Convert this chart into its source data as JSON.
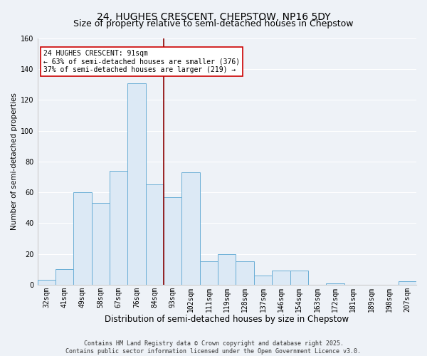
{
  "title": "24, HUGHES CRESCENT, CHEPSTOW, NP16 5DY",
  "subtitle": "Size of property relative to semi-detached houses in Chepstow",
  "xlabel": "Distribution of semi-detached houses by size in Chepstow",
  "ylabel": "Number of semi-detached properties",
  "categories": [
    "32sqm",
    "41sqm",
    "49sqm",
    "58sqm",
    "67sqm",
    "76sqm",
    "84sqm",
    "93sqm",
    "102sqm",
    "111sqm",
    "119sqm",
    "128sqm",
    "137sqm",
    "146sqm",
    "154sqm",
    "163sqm",
    "172sqm",
    "181sqm",
    "189sqm",
    "198sqm",
    "207sqm"
  ],
  "values": [
    3,
    10,
    60,
    53,
    74,
    131,
    65,
    57,
    73,
    15,
    20,
    15,
    6,
    9,
    9,
    0,
    1,
    0,
    0,
    0,
    2
  ],
  "bar_color": "#dce9f5",
  "bar_edge_color": "#6aaed6",
  "vline_x_index": 7,
  "vline_color": "#8b0000",
  "annotation_title": "24 HUGHES CRESCENT: 91sqm",
  "annotation_line1": "← 63% of semi-detached houses are smaller (376)",
  "annotation_line2": "37% of semi-detached houses are larger (219) →",
  "annotation_box_color": "white",
  "annotation_box_edge_color": "#cc0000",
  "ylim": [
    0,
    160
  ],
  "yticks": [
    0,
    20,
    40,
    60,
    80,
    100,
    120,
    140,
    160
  ],
  "footer_line1": "Contains HM Land Registry data © Crown copyright and database right 2025.",
  "footer_line2": "Contains public sector information licensed under the Open Government Licence v3.0.",
  "plot_bg_color": "#eef2f7",
  "fig_bg_color": "#eef2f7",
  "grid_color": "#ffffff",
  "title_fontsize": 10,
  "subtitle_fontsize": 9,
  "xlabel_fontsize": 8.5,
  "ylabel_fontsize": 7.5,
  "tick_fontsize": 7,
  "footer_fontsize": 6,
  "ann_fontsize": 7
}
